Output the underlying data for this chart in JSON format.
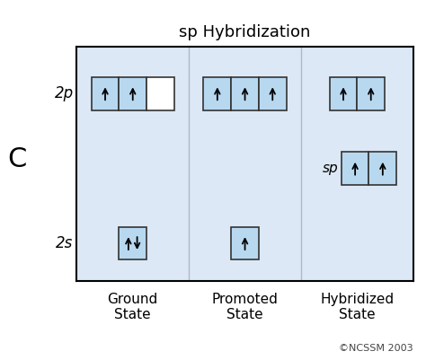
{
  "title": "sp Hybridization",
  "bg_color": "#dce8f5",
  "outer_bg": "#ffffff",
  "box_fill_blue": "#b8d8f0",
  "box_fill_white": "#ffffff",
  "box_border": "#333333",
  "divider_color": "#b0b8cc",
  "label_C": "C",
  "label_2p": "2p",
  "label_2s": "2s",
  "columns": [
    "Ground\nState",
    "Promoted\nState",
    "Hybridized\nState"
  ],
  "copyright": "©NCSSM 2003",
  "title_fontsize": 13,
  "label_fontsize": 12,
  "col_label_fontsize": 11,
  "sp_fontsize": 11
}
